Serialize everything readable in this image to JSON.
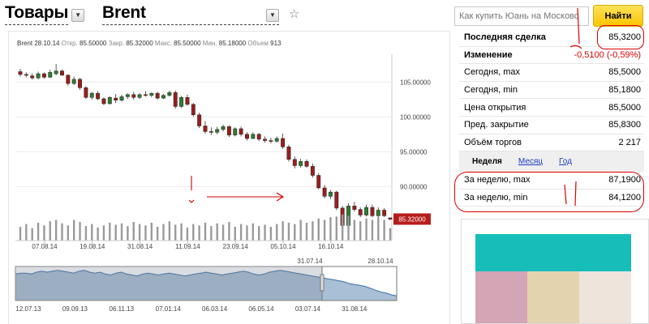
{
  "header": {
    "section_title": "Товары",
    "instrument_title": "Brent",
    "search_placeholder": "Как купить Юань на Московс",
    "search_button": "Найти"
  },
  "ohlc": {
    "name_date": "Brent 28.10.14",
    "open_label": "Откр.",
    "open": "85.50000",
    "close_label": "Закр.",
    "close": "85.32000",
    "max_label": "Макс.",
    "max": "85.50000",
    "min_label": "Мин.",
    "min": "85.18000",
    "volume_label": "Объем",
    "volume": "913"
  },
  "quote_table": [
    {
      "label": "Последняя сделка",
      "value": "85,3200",
      "bold": true
    },
    {
      "label": "Изменение",
      "value": "-0,5100 (-0,59%)",
      "bold": true,
      "negative": true
    },
    {
      "label": "Сегодня, max",
      "value": "85,5000"
    },
    {
      "label": "Сегодня, min",
      "value": "85,1800"
    },
    {
      "label": "Цена открытия",
      "value": "85,5000"
    },
    {
      "label": "Пред. закрытие",
      "value": "85,8300"
    },
    {
      "label": "Объём торгов",
      "value": "2 217"
    }
  ],
  "period_tabs": {
    "active": "Неделя",
    "links": [
      "Месяц",
      "Год"
    ]
  },
  "week_table": [
    {
      "label": "За неделю, max",
      "value": "87,1900"
    },
    {
      "label": "За неделю, min",
      "value": "84,1200"
    }
  ],
  "colors": {
    "bear": "#9b1d1d",
    "bull": "#2e7d32",
    "last_price_bg": "#b71c1c",
    "annotation": "#d00000",
    "search_button": "#fcc500",
    "ad_teal": "#16bdb9",
    "navigator_area": "#a9bfd6",
    "navigator_line": "#3d6fa8"
  },
  "icons": {
    "favorite": "star-outline-icon",
    "dropdown": "triangle-down-icon"
  },
  "chart_data": {
    "type": "candlestick",
    "main": {
      "x_ticks": [
        "07.08.14",
        "19.08.14",
        "31.08.14",
        "11.09.14",
        "23.09.14",
        "05.10.14",
        "16.10.14"
      ],
      "y_ticks": [
        "105.00000",
        "100.00000",
        "95.00000",
        "90.00000"
      ],
      "ylim": [
        82,
        109
      ],
      "last_price": "85.32000",
      "candles": [
        [
          106.5,
          106.9,
          105.8,
          106.1
        ],
        [
          106.1,
          106.4,
          105.7,
          106.0
        ],
        [
          105.9,
          106.3,
          105.4,
          105.6
        ],
        [
          105.6,
          106.5,
          105.4,
          106.2
        ],
        [
          106.2,
          106.4,
          105.5,
          105.7
        ],
        [
          105.7,
          106.8,
          105.6,
          106.4
        ],
        [
          106.2,
          107.6,
          106.0,
          106.6
        ],
        [
          106.6,
          106.8,
          105.9,
          106.0
        ],
        [
          106.0,
          106.1,
          104.5,
          104.8
        ],
        [
          104.8,
          105.8,
          104.6,
          105.4
        ],
        [
          105.4,
          105.6,
          103.9,
          104.2
        ],
        [
          104.2,
          104.4,
          102.6,
          102.8
        ],
        [
          102.8,
          103.6,
          102.5,
          103.4
        ],
        [
          103.4,
          103.7,
          102.4,
          102.6
        ],
        [
          102.6,
          102.8,
          101.7,
          101.9
        ],
        [
          101.9,
          103.0,
          101.8,
          102.8
        ],
        [
          102.7,
          103.3,
          102.0,
          102.4
        ],
        [
          102.4,
          103.2,
          102.2,
          102.9
        ],
        [
          102.9,
          103.4,
          102.6,
          103.2
        ],
        [
          103.2,
          103.6,
          102.5,
          102.8
        ],
        [
          102.8,
          103.4,
          102.6,
          103.2
        ],
        [
          103.2,
          103.7,
          102.9,
          103.1
        ],
        [
          103.1,
          103.5,
          102.8,
          103.4
        ],
        [
          103.4,
          103.6,
          102.5,
          102.7
        ],
        [
          102.7,
          103.3,
          102.6,
          103.1
        ],
        [
          103.1,
          103.8,
          102.9,
          103.5
        ],
        [
          103.5,
          103.8,
          101.2,
          101.5
        ],
        [
          101.5,
          103.0,
          101.3,
          102.8
        ],
        [
          102.8,
          103.2,
          101.6,
          101.8
        ],
        [
          101.8,
          102.0,
          100.0,
          100.3
        ],
        [
          100.3,
          100.6,
          98.4,
          98.7
        ],
        [
          98.7,
          99.4,
          97.6,
          97.9
        ],
        [
          97.9,
          98.5,
          97.4,
          97.8
        ],
        [
          97.8,
          98.6,
          97.5,
          98.2
        ],
        [
          98.2,
          98.9,
          97.9,
          98.6
        ],
        [
          98.6,
          98.8,
          97.1,
          97.4
        ],
        [
          97.4,
          98.5,
          97.2,
          98.3
        ],
        [
          98.3,
          98.6,
          97.2,
          97.5
        ],
        [
          97.5,
          97.8,
          96.6,
          96.9
        ],
        [
          96.9,
          97.8,
          96.8,
          97.5
        ],
        [
          97.5,
          97.7,
          96.5,
          96.8
        ],
        [
          96.8,
          97.2,
          96.3,
          96.6
        ],
        [
          96.6,
          97.0,
          96.2,
          96.5
        ],
        [
          96.5,
          97.2,
          96.3,
          96.9
        ],
        [
          96.9,
          97.6,
          95.4,
          95.7
        ],
        [
          95.7,
          96.0,
          93.6,
          93.9
        ],
        [
          93.9,
          94.3,
          92.6,
          93.0
        ],
        [
          93.0,
          94.0,
          92.7,
          93.6
        ],
        [
          93.6,
          93.9,
          92.7,
          92.9
        ],
        [
          92.9,
          93.3,
          91.3,
          91.6
        ],
        [
          91.6,
          91.9,
          89.6,
          89.8
        ],
        [
          89.8,
          90.2,
          88.3,
          88.6
        ],
        [
          88.6,
          89.5,
          88.2,
          89.2
        ],
        [
          89.2,
          89.4,
          86.6,
          86.9
        ],
        [
          86.9,
          87.2,
          83.8,
          84.4
        ],
        [
          84.4,
          87.6,
          84.2,
          87.2
        ],
        [
          87.2,
          87.8,
          86.4,
          86.7
        ],
        [
          86.7,
          87.0,
          85.6,
          85.9
        ],
        [
          85.9,
          87.4,
          85.7,
          87.0
        ],
        [
          87.0,
          87.4,
          85.6,
          85.8
        ],
        [
          85.8,
          87.0,
          85.6,
          86.6
        ],
        [
          86.6,
          86.9,
          85.6,
          85.8
        ],
        [
          85.5,
          85.5,
          85.2,
          85.3
        ]
      ],
      "volumes": [
        20,
        24,
        18,
        26,
        22,
        28,
        30,
        25,
        22,
        30,
        27,
        21,
        24,
        19,
        22,
        26,
        23,
        25,
        21,
        27,
        24,
        22,
        26,
        20,
        24,
        28,
        23,
        25,
        19,
        24,
        22,
        26,
        21,
        25,
        23,
        27,
        20,
        24,
        22,
        25,
        21,
        23,
        20,
        24,
        28,
        26,
        24,
        30,
        26,
        28,
        32,
        30,
        34,
        35,
        38,
        36,
        30,
        28,
        32,
        30,
        34,
        30,
        18
      ]
    },
    "navigator": {
      "range_top_labels": [
        "31.07.14",
        "28.10.14"
      ],
      "x_ticks": [
        "12.07.13",
        "09.09.13",
        "06.11.13",
        "07.01.14",
        "06.03.14",
        "06.05.14",
        "03.07.14",
        "31.08.14"
      ],
      "values": [
        108,
        109,
        109,
        108,
        110,
        111,
        110,
        111,
        112,
        111,
        110,
        109,
        111,
        112,
        110,
        109,
        110,
        108,
        107,
        109,
        110,
        108,
        107,
        106,
        108,
        109,
        108,
        107,
        108,
        109,
        108,
        107,
        106,
        107,
        108,
        109,
        110,
        109,
        108,
        107,
        108,
        109,
        110,
        111,
        110,
        108,
        107,
        108,
        110,
        111,
        112,
        111,
        110,
        109,
        108,
        107,
        106,
        105,
        104,
        103,
        102,
        101,
        100,
        98,
        97,
        96,
        95,
        93,
        91,
        89,
        88,
        86,
        85
      ]
    }
  }
}
